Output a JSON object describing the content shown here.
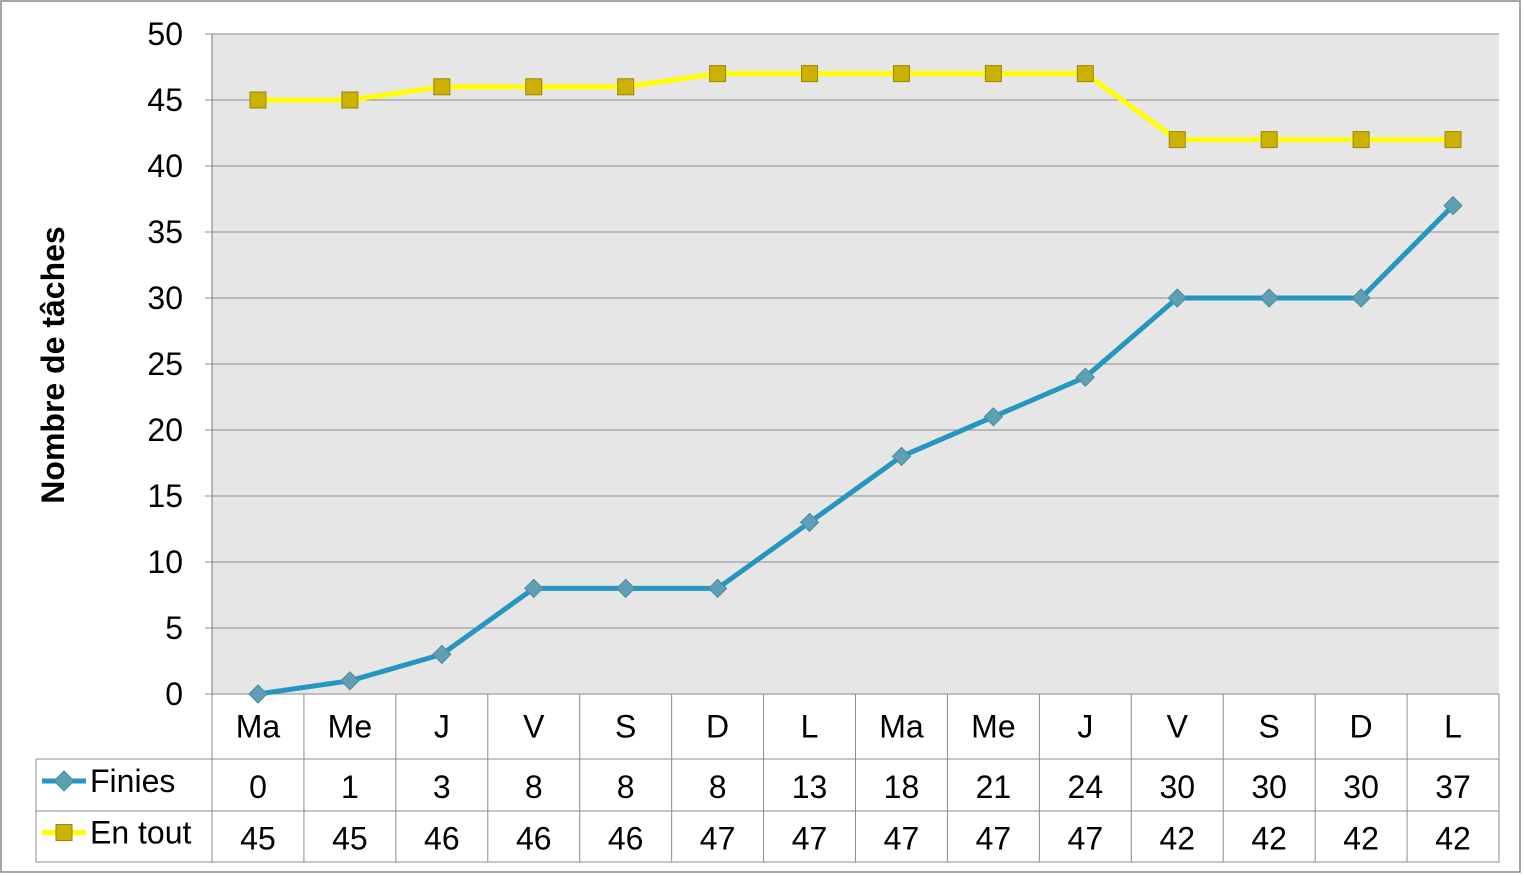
{
  "chart_data": {
    "type": "line",
    "ylabel": "Nombre  de tâches",
    "ylim": [
      0,
      50
    ],
    "yticks": [
      "0",
      "5",
      "10",
      "15",
      "20",
      "25",
      "30",
      "35",
      "40",
      "45",
      "50"
    ],
    "grid": true,
    "legend": "data-table",
    "categories": [
      "Ma",
      "Me",
      "J",
      "V",
      "S",
      "D",
      "L",
      "Ma",
      "Me",
      "J",
      "V",
      "S",
      "D",
      "L"
    ],
    "series": [
      {
        "name": "Finies",
        "values": [
          0,
          1,
          3,
          8,
          8,
          8,
          13,
          18,
          21,
          24,
          30,
          30,
          30,
          37
        ],
        "color": "#2596c0",
        "marker": "diamond",
        "marker_color": "#5f9fb5"
      },
      {
        "name": "En tout",
        "values": [
          45,
          45,
          46,
          46,
          46,
          47,
          47,
          47,
          47,
          47,
          42,
          42,
          42,
          42
        ],
        "color": "#ffff00",
        "marker": "square",
        "marker_color": "#ccb100"
      }
    ],
    "plot_background": "#e6e6e6"
  }
}
